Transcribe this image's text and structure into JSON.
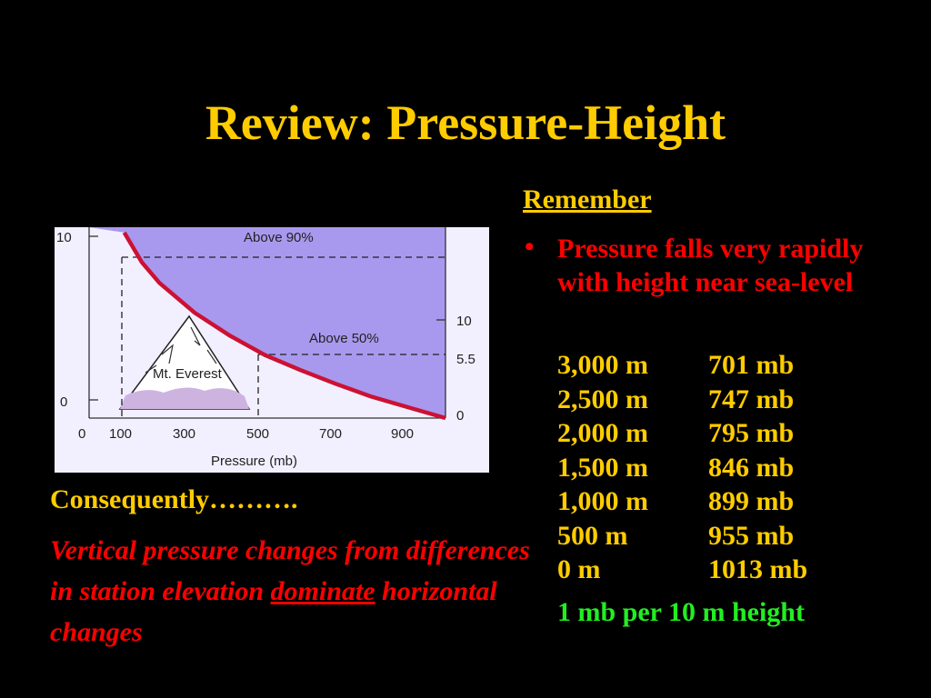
{
  "slide": {
    "title": "Review: Pressure-Height",
    "remember_label": "Remember",
    "bullet_marker": "•",
    "bullet_text": "Pressure falls very rapidly with height near sea-level",
    "table": [
      {
        "height": "3,000 m",
        "pressure": "701 mb"
      },
      {
        "height": "2,500 m",
        "pressure": "747 mb"
      },
      {
        "height": "2,000 m",
        "pressure": "795 mb"
      },
      {
        "height": "1,500 m",
        "pressure": "846 mb"
      },
      {
        "height": "1,000 m",
        "pressure": "899 mb"
      },
      {
        "height": "500 m",
        "pressure": "955 mb"
      },
      {
        "height": "0 m",
        "pressure": "1013 mb"
      }
    ],
    "rate_note": "1 mb per 10 m height",
    "consequently": "Consequently……….",
    "conclusion_part1": "Vertical pressure changes from differences in station elevation ",
    "conclusion_underlined": "dominate",
    "conclusion_part2": " horizontal changes",
    "colors": {
      "title": "#ffcc00",
      "bullet": "#ff0000",
      "note": "#22ee22",
      "background": "#000000"
    }
  },
  "chart_data": {
    "type": "line",
    "x_ticks": [
      "0",
      "100",
      "300",
      "500",
      "700",
      "900"
    ],
    "y_left_ticks": [
      "10",
      "0"
    ],
    "y_right_ticks": [
      "10",
      "5.5",
      "0"
    ],
    "xlabel": "Pressure (mb)",
    "annotations": [
      "Above 90%",
      "Above 50%",
      "Mt. Everest"
    ],
    "series": [
      {
        "x": [
          100,
          150,
          200,
          300,
          400,
          500,
          600,
          700,
          800,
          900,
          1013
        ],
        "y": [
          16.2,
          13.6,
          11.8,
          9.2,
          7.2,
          5.5,
          4.2,
          3.0,
          1.9,
          1.0,
          0
        ]
      }
    ],
    "colors": {
      "curve": "#cc1133",
      "fill": "#a899ee",
      "plot_bg": "#f2f0ff"
    }
  }
}
